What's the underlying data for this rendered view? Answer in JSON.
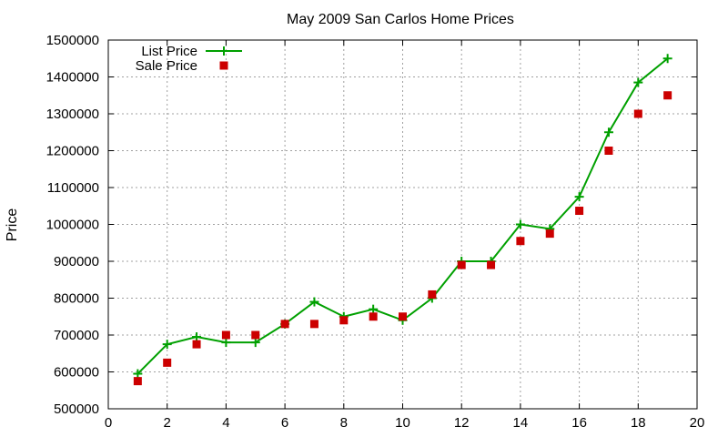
{
  "chart_data": {
    "type": "line",
    "title": "May 2009 San Carlos Home Prices",
    "xlabel": "",
    "ylabel": "Price",
    "xlim": [
      0,
      20
    ],
    "ylim": [
      500000,
      1500000
    ],
    "xticks": [
      "0",
      "2",
      "4",
      "6",
      "8",
      "10",
      "12",
      "14",
      "16",
      "18",
      "20"
    ],
    "yticks": [
      "500000",
      "600000",
      "700000",
      "800000",
      "900000",
      "1000000",
      "1100000",
      "1200000",
      "1300000",
      "1400000",
      "1500000"
    ],
    "grid": true,
    "legend_position": "top-left",
    "series": [
      {
        "name": "List Price",
        "style": "line+cross",
        "color": "#00a000",
        "x": [
          1,
          2,
          3,
          4,
          5,
          6,
          7,
          8,
          9,
          10,
          11,
          12,
          13,
          14,
          15,
          16,
          17,
          18,
          19
        ],
        "y": [
          595000,
          675000,
          695000,
          680000,
          680000,
          730000,
          790000,
          750000,
          770000,
          740000,
          800000,
          900000,
          900000,
          1000000,
          988000,
          1075000,
          1250000,
          1385000,
          1450000
        ]
      },
      {
        "name": "Sale Price",
        "style": "square",
        "color": "#cc0000",
        "x": [
          1,
          2,
          3,
          4,
          5,
          6,
          7,
          8,
          9,
          10,
          11,
          12,
          13,
          14,
          15,
          16,
          17,
          18,
          19
        ],
        "y": [
          575000,
          625000,
          675000,
          700000,
          700000,
          730000,
          730000,
          740000,
          750000,
          750000,
          810000,
          890000,
          890000,
          955000,
          975000,
          1037000,
          1200000,
          1300000,
          1350000
        ]
      }
    ]
  }
}
